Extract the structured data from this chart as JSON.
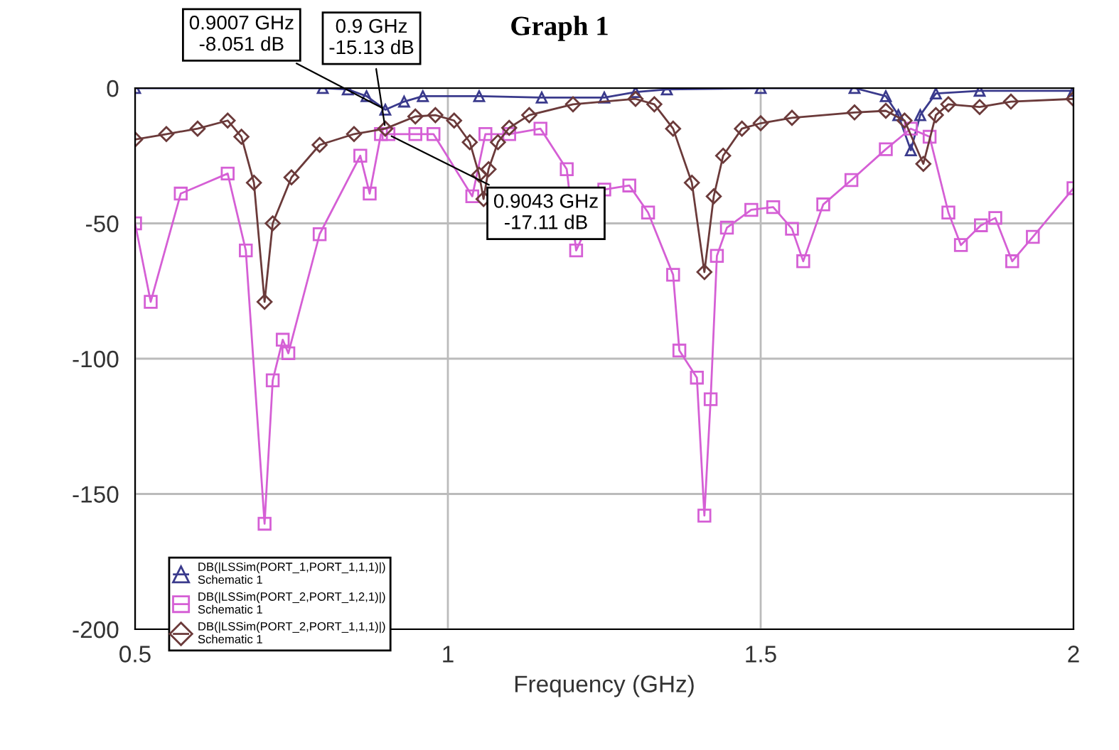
{
  "chart_data": {
    "type": "line",
    "title": "Graph 1",
    "xlabel": "Frequency (GHz)",
    "xlim": [
      0.5,
      2
    ],
    "xticks": [
      0.5,
      1,
      1.5,
      2
    ],
    "ylim": [
      -200,
      0
    ],
    "yticks": [
      0,
      -50,
      -100,
      -150,
      -200
    ],
    "grid": true,
    "legend": "bottom left",
    "line_style": "solid",
    "series": [
      {
        "name": "DB(|LSSim(PORT_1,PORT_1,1,1)|)\nSchematic 1",
        "color": "#3a3a8c",
        "marker": "triangle",
        "x": [
          0.5,
          0.8,
          0.84,
          0.87,
          0.9,
          0.93,
          0.96,
          1.05,
          1.15,
          1.25,
          1.3,
          1.35,
          1.5,
          1.65,
          1.7,
          1.72,
          1.74,
          1.755,
          1.78,
          1.85,
          2
        ],
        "values": [
          0,
          0,
          -0.5,
          -3,
          -8,
          -5,
          -3,
          -3,
          -3.5,
          -3.5,
          -1.5,
          -0.5,
          0,
          0,
          -3,
          -10,
          -23,
          -10,
          -2,
          -1,
          -1
        ]
      },
      {
        "name": "DB(|LSSim(PORT_2,PORT_1,2,1)|)\nSchematic 1",
        "color": "#d55fd5",
        "marker": "square",
        "x": [
          0.5,
          0.525,
          0.573,
          0.648,
          0.677,
          0.707,
          0.72,
          0.736,
          0.745,
          0.795,
          0.86,
          0.875,
          0.893,
          0.905,
          0.948,
          0.977,
          1.039,
          1.06,
          1.098,
          1.148,
          1.19,
          1.205,
          1.25,
          1.29,
          1.32,
          1.36,
          1.37,
          1.398,
          1.41,
          1.42,
          1.43,
          1.446,
          1.485,
          1.52,
          1.55,
          1.568,
          1.6,
          1.645,
          1.7,
          1.74,
          1.77,
          1.8,
          1.82,
          1.852,
          1.875,
          1.902,
          1.935,
          2
        ],
        "values": [
          -50,
          -79,
          -39,
          -31.6,
          -60,
          -161,
          -108,
          -93,
          -98,
          -54,
          -25,
          -39,
          -17,
          -17,
          -17,
          -17,
          -40,
          -17,
          -17,
          -15,
          -30,
          -60,
          -37.5,
          -36,
          -46,
          -69,
          -97,
          -107,
          -158,
          -115,
          -62,
          -51.6,
          -45,
          -44,
          -52,
          -64,
          -43,
          -34,
          -22.6,
          -15,
          -18,
          -46,
          -58,
          -50.7,
          -48,
          -64,
          -55,
          -37
        ]
      },
      {
        "name": "DB(|LSSim(PORT_2,PORT_1,1,1)|)\nSchematic 1",
        "color": "#6b3a3a",
        "marker": "diamond",
        "x": [
          0.5,
          0.55,
          0.6,
          0.648,
          0.67,
          0.69,
          0.707,
          0.72,
          0.75,
          0.795,
          0.85,
          0.9,
          0.948,
          0.98,
          1.01,
          1.035,
          1.05,
          1.057,
          1.065,
          1.08,
          1.098,
          1.13,
          1.2,
          1.3,
          1.33,
          1.36,
          1.39,
          1.41,
          1.425,
          1.44,
          1.47,
          1.5,
          1.55,
          1.65,
          1.7,
          1.73,
          1.76,
          1.78,
          1.8,
          1.85,
          1.9,
          2
        ],
        "values": [
          -19,
          -17,
          -15,
          -12,
          -18,
          -35,
          -79,
          -50,
          -33,
          -21,
          -17,
          -15,
          -10.5,
          -10,
          -12,
          -20,
          -32,
          -41,
          -30,
          -20,
          -14.7,
          -10,
          -6,
          -4,
          -6,
          -15,
          -35,
          -68,
          -40,
          -25,
          -15,
          -13,
          -11,
          -9,
          -8.4,
          -12,
          -28,
          -10,
          -6,
          -7,
          -5,
          -4
        ]
      }
    ],
    "annotations": [
      {
        "text": "0.9007 GHz\n-8.051 dB",
        "x": 0.9007,
        "y": -8.051
      },
      {
        "text": "0.9 GHz\n-15.13 dB",
        "x": 0.9,
        "y": -15.13
      },
      {
        "text": "0.9043 GHz\n-17.11 dB",
        "x": 0.9043,
        "y": -17.11
      }
    ]
  }
}
